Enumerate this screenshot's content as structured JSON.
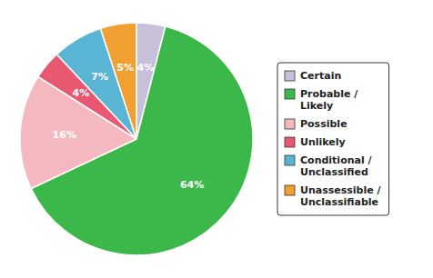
{
  "chart_data": {
    "type": "pie",
    "categories": [
      "Certain",
      "Probable /\nLikely",
      "Possible",
      "Unlikely",
      "Conditional /\nUnclassified",
      "Unassessible /\nUnclassifiable"
    ],
    "values": [
      4,
      64,
      16,
      4,
      7,
      5
    ],
    "value_labels": [
      "4%",
      "64%",
      "16%",
      "4%",
      "7%",
      "5%"
    ],
    "colors": [
      "#c8c0d8",
      "#3cb84a",
      "#f4b8c0",
      "#e85870",
      "#5ab4d4",
      "#f0a030"
    ],
    "data_labels": true,
    "legend": "right"
  }
}
